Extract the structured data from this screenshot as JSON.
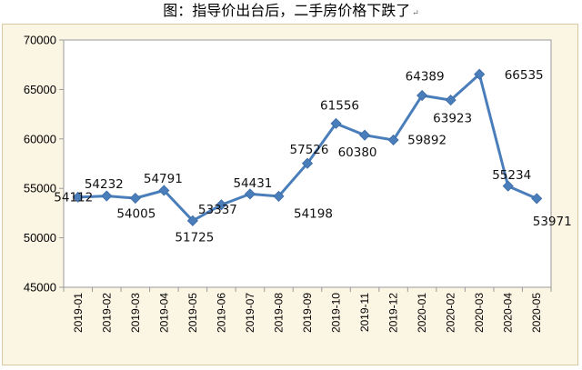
{
  "title_text": "图：指导价出台后，二手房价格下跌了",
  "title_mark": "↵",
  "chart_data": {
    "type": "line",
    "title": "图：指导价出台后，二手房价格下跌了",
    "xlabel": "",
    "ylabel": "",
    "ylim": [
      45000,
      70000
    ],
    "yticks": [
      "70000",
      "65000",
      "60000",
      "55000",
      "50000",
      "45000"
    ],
    "categories": [
      "2019-01",
      "2019-02",
      "2019-03",
      "2019-04",
      "2019-05",
      "2019-06",
      "2019-07",
      "2019-08",
      "2019-09",
      "2019-10",
      "2019-11",
      "2019-12",
      "2020-01",
      "2020-02",
      "2020-03",
      "2020-04",
      "2020-05"
    ],
    "series": [
      {
        "values": [
          54112,
          54232,
          54005,
          54791,
          51725,
          53337,
          54431,
          54198,
          57526,
          61556,
          60380,
          59892,
          64389,
          63923,
          66535,
          55234,
          53971
        ]
      }
    ],
    "grid": false,
    "legend": "none",
    "line_color": "#4a7ebb",
    "marker_color": "#4a7ebb",
    "background_color": "#fbf5e4"
  }
}
